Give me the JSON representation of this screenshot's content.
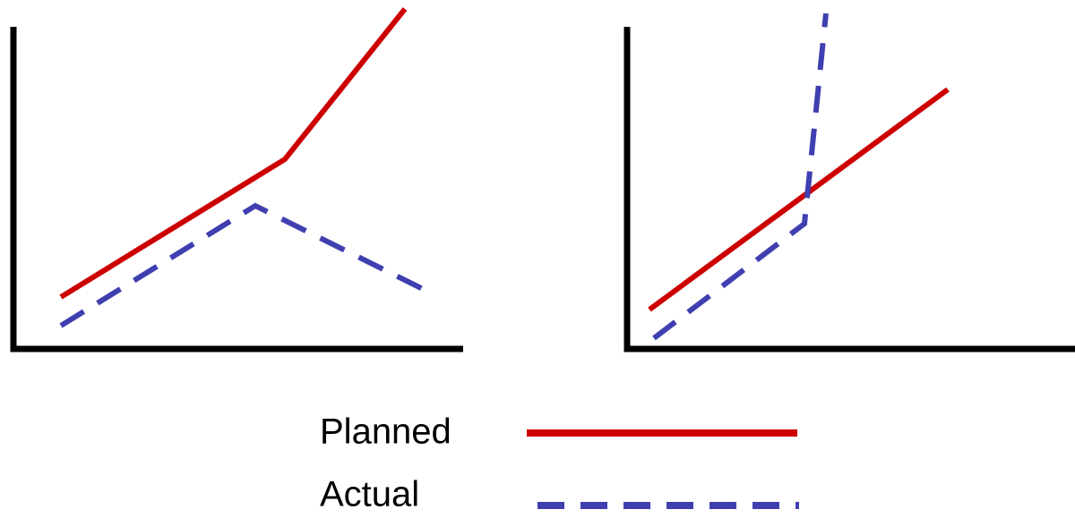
{
  "legend": [
    {
      "label": "Planned"
    },
    {
      "label": "Actual"
    }
  ]
}
